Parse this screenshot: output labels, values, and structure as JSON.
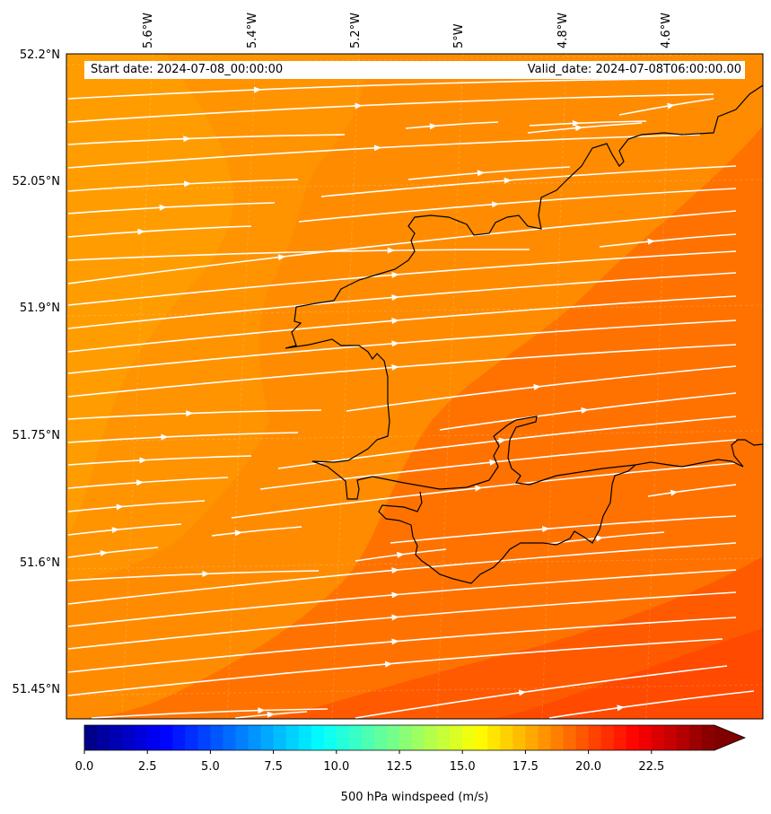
{
  "map": {
    "start_date": "Start date: 2024-07-08_00:00:00",
    "valid_date": "Valid_date: 2024-07-08T06:00:00.00",
    "lon_labels": [
      "5.6°W",
      "5.4°W",
      "5.2°W",
      "5°W",
      "4.8°W",
      "4.6°W"
    ],
    "lat_labels": [
      "52.2°N",
      "52.05°N",
      "51.9°N",
      "51.75°N",
      "51.6°N",
      "51.45°N"
    ],
    "field": "500 hPa windspeed",
    "background_color": "#ff8c00",
    "coastline_color": "#000000",
    "streamline_color": "#ffffff"
  },
  "colorbar": {
    "label": "500 hPa windspeed (m/s)",
    "ticks": [
      "0.0",
      "2.5",
      "5.0",
      "7.5",
      "10.0",
      "12.5",
      "15.0",
      "17.5",
      "20.0",
      "22.5"
    ],
    "min": 0,
    "max": 25,
    "colormap": "jet",
    "extend": "max"
  }
}
